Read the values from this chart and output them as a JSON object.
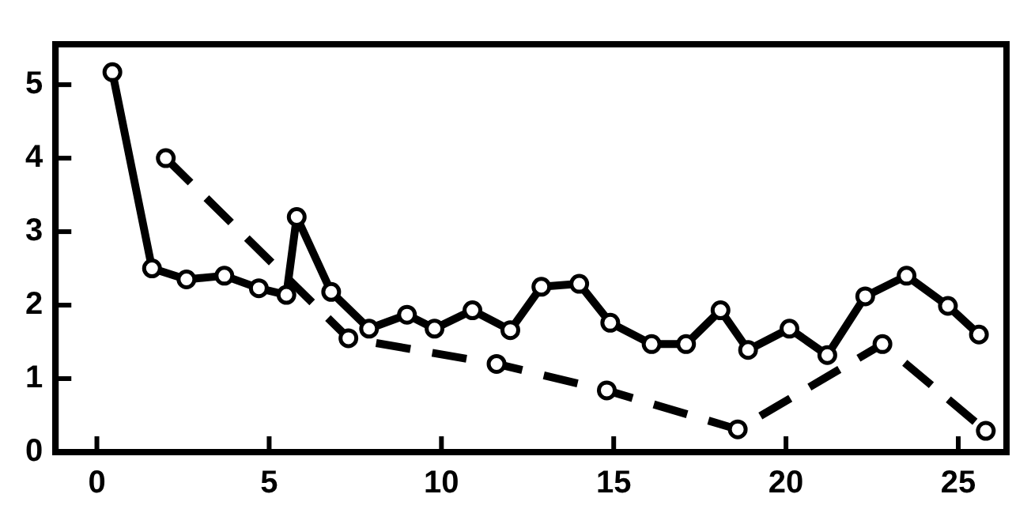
{
  "chart_data": {
    "type": "line",
    "xlim": [
      -1.2,
      26.4
    ],
    "ylim": [
      0,
      5.55
    ],
    "xticks": [
      0,
      5,
      10,
      15,
      20,
      25
    ],
    "yticks": [
      0,
      1,
      2,
      3,
      4,
      5
    ],
    "grid": false,
    "legend": false,
    "marker": "circle",
    "series": [
      {
        "color": "#000000",
        "line_style": "solid",
        "x": [
          0.45,
          1.6,
          2.6,
          3.7,
          4.7,
          5.5,
          5.8,
          6.8,
          7.9,
          9.0,
          9.8,
          10.9,
          12.0,
          12.9,
          14.0,
          14.9,
          16.1,
          17.1,
          18.1,
          18.9,
          20.1,
          21.2,
          22.3,
          23.5,
          24.7,
          25.6
        ],
        "values": [
          5.17,
          2.5,
          2.35,
          2.4,
          2.23,
          2.14,
          3.2,
          2.18,
          1.68,
          1.87,
          1.68,
          1.93,
          1.66,
          2.25,
          2.29,
          1.76,
          1.47,
          1.47,
          1.93,
          1.39,
          1.68,
          1.32,
          2.12,
          2.4,
          1.99,
          1.6
        ]
      },
      {
        "color": "#000000",
        "line_style": "dashed",
        "x": [
          2.0,
          7.3,
          11.6,
          14.8,
          18.6,
          22.8,
          25.8
        ],
        "values": [
          4.0,
          1.55,
          1.2,
          0.84,
          0.31,
          1.47,
          0.29
        ]
      }
    ]
  }
}
